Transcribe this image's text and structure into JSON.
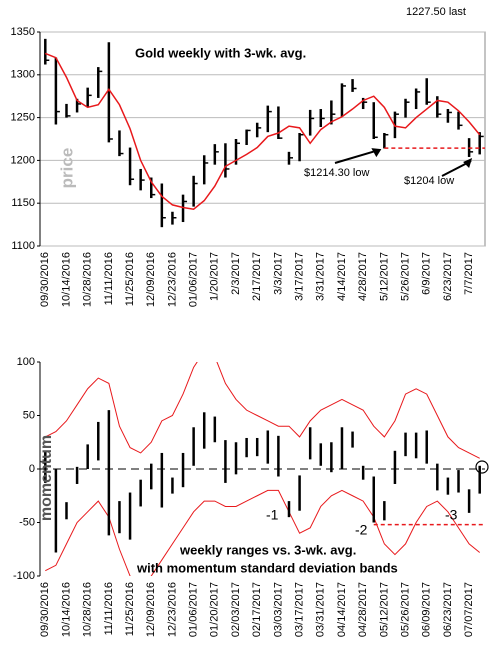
{
  "chart_data": [
    {
      "type": "range",
      "title": "Gold weekly with 3-wk. avg.",
      "y_label": "price",
      "last_label": "1227.50 last",
      "categories": [
        "09/30/2016",
        null,
        "10/14/2016",
        null,
        "10/28/2016",
        null,
        "11/11/2016",
        null,
        "11/25/2016",
        null,
        "12/09/2016",
        null,
        "12/23/2016",
        null,
        "01/06/2017",
        null,
        "1/20/2017",
        null,
        "2/3/2017",
        null,
        "2/17/2017",
        null,
        "3/3/2017",
        null,
        "3/17/2017",
        null,
        "3/31/2017",
        null,
        "4/14/2017",
        null,
        "4/28/2017",
        null,
        "5/12/2017",
        null,
        "5/26/2017",
        null,
        "6/9/2017",
        null,
        "6/23/2017",
        null,
        "7/7/2017",
        null
      ],
      "high": [
        1342,
        1320,
        1266,
        1272,
        1285,
        1309,
        1338,
        1235,
        1215,
        1190,
        1180,
        1173,
        1140,
        1160,
        1182,
        1206,
        1219,
        1220,
        1225,
        1236,
        1244,
        1264,
        1263,
        1210,
        1232,
        1259,
        1260,
        1270,
        1290,
        1295,
        1273,
        1268,
        1232,
        1257,
        1272,
        1284,
        1296,
        1275,
        1260,
        1257,
        1226,
        1233
      ],
      "low": [
        1312,
        1242,
        1250,
        1256,
        1262,
        1273,
        1221,
        1205,
        1171,
        1165,
        1156,
        1122,
        1125,
        1128,
        1146,
        1172,
        1195,
        1180,
        1195,
        1218,
        1227,
        1233,
        1225,
        1195,
        1199,
        1229,
        1239,
        1242,
        1251,
        1280,
        1260,
        1225,
        1214,
        1226,
        1250,
        1260,
        1265,
        1250,
        1244,
        1236,
        1204,
        1207
      ],
      "close": [
        1317,
        1257,
        1252,
        1266,
        1276,
        1304,
        1225,
        1208,
        1178,
        1177,
        1160,
        1133,
        1133,
        1152,
        1173,
        1197,
        1210,
        1190,
        1220,
        1235,
        1238,
        1257,
        1226,
        1203,
        1230,
        1249,
        1249,
        1254,
        1287,
        1284,
        1268,
        1227,
        1230,
        1254,
        1268,
        1280,
        1268,
        1254,
        1256,
        1241,
        1210,
        1228
      ],
      "color": "#000000",
      "avg": {
        "color": "#e8191c",
        "values": [
          1325,
          1320,
          1297,
          1270,
          1262,
          1265,
          1283,
          1265,
          1237,
          1200,
          1175,
          1158,
          1148,
          1145,
          1143,
          1153,
          1170,
          1193,
          1200,
          1207,
          1215,
          1228,
          1232,
          1240,
          1238,
          1220,
          1236,
          1245,
          1251,
          1260,
          1270,
          1275,
          1262,
          1240,
          1238,
          1250,
          1260,
          1270,
          1268,
          1258,
          1245,
          1230
        ]
      },
      "annotations": [
        {
          "value": 1214.3,
          "label": "$1214.30 low"
        },
        {
          "value": 1204,
          "label": "$1204 low"
        }
      ],
      "ylim": [
        1100,
        1350
      ],
      "yticks": [
        1100,
        1150,
        1200,
        1250,
        1300,
        1350
      ],
      "grid": true
    },
    {
      "type": "range",
      "title": "weekly ranges vs. 3-wk. avg.",
      "subtitle": "with momentum standard deviation bands",
      "y_label": "momentum",
      "categories": [
        "09/30/2016",
        null,
        "10/14/2016",
        null,
        "10/28/2016",
        null,
        "11/11/2016",
        null,
        "11/25/2016",
        null,
        "12/09/2016",
        null,
        "12/23/2016",
        null,
        "01/06/2017",
        null,
        "01/20/2017",
        null,
        "02/03/2017",
        null,
        "02/17/2017",
        null,
        "03/03/2017",
        null,
        "03/17/2017",
        null,
        "03/31/2017",
        null,
        "04/14/2017",
        null,
        "04/28/2017",
        null,
        "05/12/2017",
        null,
        "05/26/2017",
        null,
        "06/09/2017",
        null,
        "06/23/2017",
        null,
        "07/07/2017",
        null
      ],
      "high": [
        17,
        0,
        -31,
        2,
        23,
        44,
        55,
        -30,
        -22,
        -10,
        5,
        15,
        -8,
        15,
        39,
        53,
        49,
        27,
        25,
        29,
        29,
        36,
        31,
        -30,
        -6,
        39,
        24,
        25,
        39,
        35,
        3,
        -7,
        -30,
        17,
        34,
        34,
        36,
        5,
        -8,
        -1,
        -19,
        3
      ],
      "low": [
        -13,
        -78,
        -47,
        -14,
        0,
        8,
        -62,
        -60,
        -66,
        -35,
        -19,
        -36,
        -23,
        -17,
        3,
        19,
        25,
        -13,
        -5,
        11,
        12,
        5,
        -7,
        -45,
        -39,
        9,
        3,
        -3,
        0,
        20,
        -10,
        -50,
        -48,
        -14,
        12,
        10,
        5,
        -20,
        -24,
        -22,
        -41,
        -23
      ],
      "color": "#000000",
      "bands": {
        "color": "#e8191c",
        "upper": [
          30,
          35,
          45,
          60,
          75,
          85,
          80,
          40,
          20,
          15,
          25,
          45,
          50,
          70,
          95,
          110,
          105,
          80,
          65,
          55,
          50,
          45,
          40,
          40,
          30,
          45,
          55,
          60,
          65,
          60,
          55,
          40,
          30,
          45,
          70,
          75,
          70,
          50,
          30,
          20,
          15,
          10
        ],
        "lower": [
          -95,
          -90,
          -70,
          -50,
          -40,
          -30,
          -45,
          -75,
          -100,
          -110,
          -100,
          -85,
          -70,
          -55,
          -40,
          -30,
          -30,
          -35,
          -35,
          -30,
          -25,
          -20,
          -20,
          -40,
          -60,
          -55,
          -35,
          -25,
          -20,
          -25,
          -30,
          -45,
          -70,
          -80,
          -70,
          -50,
          -35,
          -30,
          -40,
          -55,
          -70,
          -78
        ]
      },
      "dashed_level": -52,
      "annotations": [
        "-1",
        "-2",
        "-3"
      ],
      "ylim": [
        -100,
        100
      ],
      "yticks": [
        -100,
        -50,
        0,
        50,
        100
      ],
      "grid": false
    }
  ]
}
